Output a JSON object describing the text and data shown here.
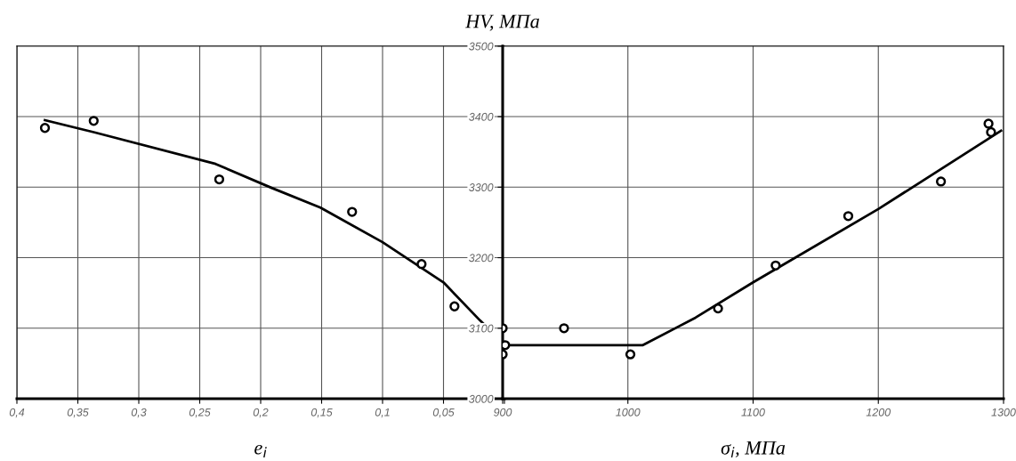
{
  "chart_data": [
    {
      "type": "scatter",
      "xlabel": "e$_{i}$",
      "xlim": [
        0.4,
        0
      ],
      "xticks": [
        {
          "value": 0.4,
          "label": "0,4"
        },
        {
          "value": 0.35,
          "label": "0,35"
        },
        {
          "value": 0.3,
          "label": "0,3"
        },
        {
          "value": 0.25,
          "label": "0,25"
        },
        {
          "value": 0.2,
          "label": "0,2"
        },
        {
          "value": 0.15,
          "label": "0,15"
        },
        {
          "value": 0.1,
          "label": "0,1"
        },
        {
          "value": 0.05,
          "label": "0,05"
        },
        {
          "value": 0,
          "label": null
        }
      ],
      "ylim": [
        3000,
        3500
      ],
      "yticks": [
        3000,
        3100,
        3200,
        3300,
        3400,
        3500
      ],
      "tick_labels": "x",
      "grid": true,
      "marker": "circle",
      "series": [
        {
          "color": "#000000",
          "x": [
            0.377,
            0.337,
            0.234,
            0.125,
            0.068,
            0.041
          ],
          "values": [
            3384,
            3394,
            3311,
            3265,
            3191,
            3131
          ]
        },
        {
          "type": "line",
          "marker": "none",
          "color": "#000000",
          "x": [
            0.377,
            0.337,
            0.237,
            0.191,
            0.151,
            0.1,
            0.05,
            0.02,
            0.014
          ],
          "values": [
            3395,
            3378,
            3333,
            3299,
            3271,
            3222,
            3165,
            3111,
            3101
          ]
        }
      ]
    },
    {
      "type": "scatter",
      "ylabel": "HV, МПа",
      "xlabel": "σ$_{i}$, МПа",
      "xlim": [
        900,
        1300
      ],
      "xticks": [
        900,
        1000,
        1100,
        1200,
        1300
      ],
      "ylim": [
        3000,
        3500
      ],
      "yticks": [
        3000,
        3100,
        3200,
        3300,
        3400,
        3500
      ],
      "grid": true,
      "marker": "circle",
      "series": [
        {
          "color": "#000000",
          "x": [
            900,
            900,
            902,
            949,
            1002,
            1072,
            1118,
            1176,
            1250,
            1288,
            1290
          ],
          "values": [
            3100,
            3063,
            3076,
            3100,
            3063,
            3128,
            3189,
            3259,
            3308,
            3390,
            3378
          ]
        },
        {
          "type": "line",
          "marker": "none",
          "color": "#000000",
          "x": [
            900,
            1012,
            1054,
            1100,
            1200,
            1298
          ],
          "values": [
            3076,
            3076,
            3115,
            3165,
            3269,
            3380
          ]
        }
      ]
    }
  ]
}
